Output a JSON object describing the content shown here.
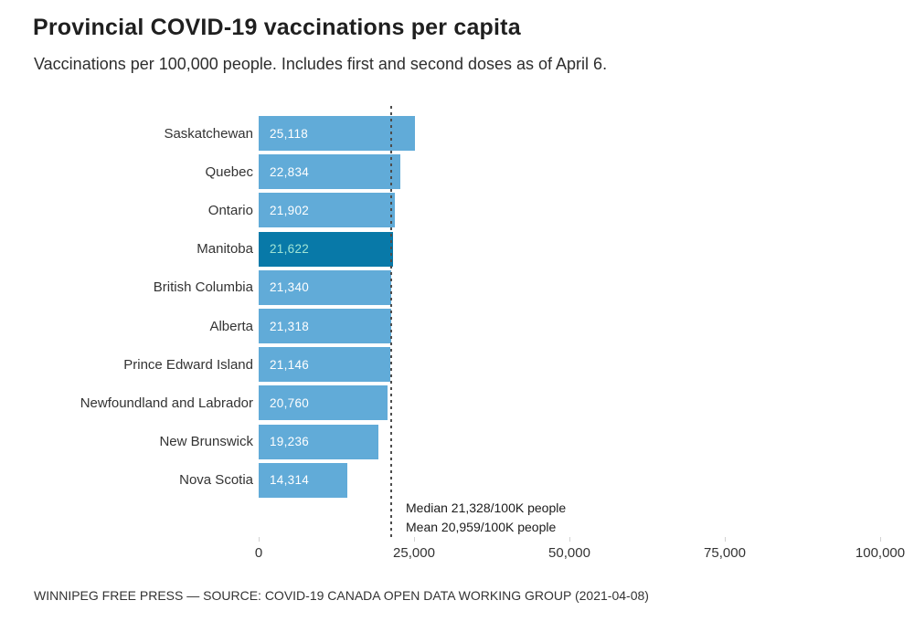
{
  "header": {
    "title": "Provincial COVID-19 vaccinations per capita",
    "subtitle": "Vaccinations per 100,000 people. Includes first and second doses as of April 6."
  },
  "chart_data": {
    "type": "bar",
    "orientation": "horizontal",
    "categories": [
      "Saskatchewan",
      "Quebec",
      "Ontario",
      "Manitoba",
      "British Columbia",
      "Alberta",
      "Prince Edward Island",
      "Newfoundland and Labrador",
      "New Brunswick",
      "Nova Scotia"
    ],
    "values": [
      25118,
      22834,
      21902,
      21622,
      21340,
      21318,
      21146,
      20760,
      19236,
      14314
    ],
    "value_labels": [
      "25,118",
      "22,834",
      "21,902",
      "21,622",
      "21,340",
      "21,318",
      "21,146",
      "20,760",
      "19,236",
      "14,314"
    ],
    "highlight_category": "Manitoba",
    "x_axis": {
      "min": 0,
      "max": 100000,
      "ticks": [
        0,
        25000,
        50000,
        75000,
        100000
      ],
      "tick_labels": [
        "0",
        "25,000",
        "50,000",
        "75,000",
        "100,000"
      ],
      "grid": false
    },
    "annotations": {
      "median_line_value": 21328,
      "median_label": "Median 21,328/100K people",
      "mean_label": "Mean 20,959/100K people"
    },
    "colors": {
      "bar": "#61ABD8",
      "highlight_bar": "#0879A8",
      "value_text": "#FFFFFF",
      "highlight_value_text": "#9FE4D5",
      "median_line": "#4D4D4D"
    },
    "legend": null
  },
  "footer": {
    "source": "WINNIPEG FREE PRESS — SOURCE: COVID-19 CANADA OPEN DATA WORKING GROUP (2021-04-08)"
  }
}
